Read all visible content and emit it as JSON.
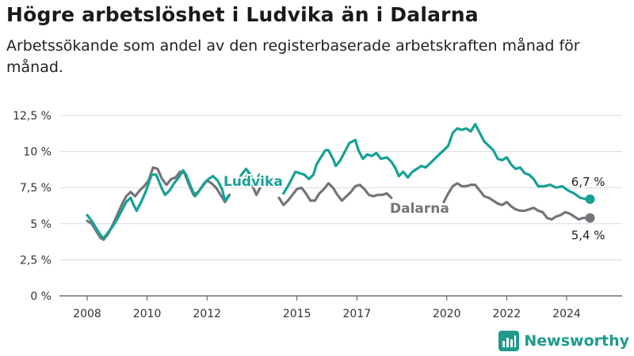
{
  "title": "Högre arbetslöshet i Ludvika än i Dalarna",
  "subtitle": "Arbetssökande som andel av den registerbaserade arbetskraften månad för månad.",
  "brand": {
    "name": "Newsworthy",
    "icon": "newsworthy-logo-icon"
  },
  "colors": {
    "ludvika": "#17a195",
    "dalarna": "#76747a",
    "grid": "#d9d9d9",
    "axis": "#555555"
  },
  "chart_data": {
    "type": "line",
    "title": "Högre arbetslöshet i Ludvika än i Dalarna",
    "subtitle": "Arbetssökande som andel av den registerbaserade arbetskraften månad för månad.",
    "xlabel": "",
    "ylabel": "",
    "xlim": [
      2007.5,
      2026.2
    ],
    "ylim": [
      0,
      12.5
    ],
    "grid": true,
    "legend": "inline labels",
    "y_ticks": [
      {
        "value": 0,
        "label": "0 %"
      },
      {
        "value": 2.5,
        "label": "2,5 %"
      },
      {
        "value": 5,
        "label": "5 %"
      },
      {
        "value": 7.5,
        "label": "7,5 %"
      },
      {
        "value": 10,
        "label": "10 %"
      },
      {
        "value": 12.5,
        "label": "12,5 %"
      }
    ],
    "x_ticks": [
      {
        "value": 2008,
        "label": "2008"
      },
      {
        "value": 2010,
        "label": "2010"
      },
      {
        "value": 2012,
        "label": "2012"
      },
      {
        "value": 2015,
        "label": "2015"
      },
      {
        "value": 2017,
        "label": "2017"
      },
      {
        "value": 2020,
        "label": "2020"
      },
      {
        "value": 2022,
        "label": "2022"
      },
      {
        "value": 2024,
        "label": "2024"
      }
    ],
    "series": [
      {
        "name": "Ludvika",
        "end_label": "6,7 %",
        "segments": [
          [
            [
              2008.0,
              5.6
            ],
            [
              2008.15,
              5.2
            ],
            [
              2008.3,
              4.7
            ],
            [
              2008.45,
              4.2
            ],
            [
              2008.55,
              4.0
            ],
            [
              2008.7,
              4.4
            ],
            [
              2008.85,
              4.8
            ],
            [
              2009.0,
              5.3
            ],
            [
              2009.15,
              5.9
            ],
            [
              2009.3,
              6.5
            ],
            [
              2009.45,
              6.8
            ],
            [
              2009.55,
              6.3
            ],
            [
              2009.65,
              5.9
            ],
            [
              2009.8,
              6.5
            ],
            [
              2009.95,
              7.2
            ],
            [
              2010.05,
              7.8
            ],
            [
              2010.15,
              8.4
            ],
            [
              2010.3,
              8.4
            ],
            [
              2010.4,
              7.9
            ],
            [
              2010.5,
              7.4
            ],
            [
              2010.6,
              7.0
            ],
            [
              2010.75,
              7.3
            ],
            [
              2010.9,
              7.8
            ],
            [
              2011.05,
              8.2
            ],
            [
              2011.2,
              8.7
            ],
            [
              2011.3,
              8.4
            ],
            [
              2011.45,
              7.6
            ],
            [
              2011.6,
              6.9
            ],
            [
              2011.75,
              7.3
            ],
            [
              2011.9,
              7.8
            ],
            [
              2012.05,
              8.1
            ],
            [
              2012.2,
              8.3
            ],
            [
              2012.35,
              8.0
            ],
            [
              2012.5,
              7.4
            ],
            [
              2012.6,
              6.6
            ],
            [
              2012.7,
              6.9
            ]
          ],
          [
            [
              2013.0,
              7.8
            ],
            [
              2013.15,
              8.4
            ],
            [
              2013.3,
              8.8
            ],
            [
              2013.45,
              8.4
            ],
            [
              2013.6,
              7.9
            ],
            [
              2013.75,
              8.4
            ],
            [
              2013.9,
              8.0
            ],
            [
              2014.0,
              7.7
            ]
          ],
          [
            [
              2014.55,
              7.1
            ],
            [
              2014.7,
              7.6
            ],
            [
              2014.85,
              8.2
            ],
            [
              2014.95,
              8.6
            ],
            [
              2015.1,
              8.5
            ],
            [
              2015.25,
              8.4
            ],
            [
              2015.4,
              8.1
            ],
            [
              2015.55,
              8.4
            ],
            [
              2015.65,
              9.1
            ],
            [
              2015.8,
              9.6
            ],
            [
              2015.95,
              10.1
            ],
            [
              2016.05,
              10.1
            ],
            [
              2016.2,
              9.5
            ],
            [
              2016.3,
              9.0
            ],
            [
              2016.45,
              9.4
            ],
            [
              2016.6,
              10.0
            ],
            [
              2016.75,
              10.6
            ],
            [
              2016.95,
              10.8
            ],
            [
              2017.05,
              10.1
            ],
            [
              2017.2,
              9.5
            ],
            [
              2017.35,
              9.8
            ],
            [
              2017.5,
              9.7
            ],
            [
              2017.65,
              9.9
            ],
            [
              2017.8,
              9.5
            ],
            [
              2018.0,
              9.6
            ],
            [
              2018.15,
              9.3
            ],
            [
              2018.3,
              8.8
            ],
            [
              2018.4,
              8.3
            ],
            [
              2018.55,
              8.6
            ],
            [
              2018.7,
              8.2
            ],
            [
              2018.85,
              8.6
            ],
            [
              2019.0,
              8.8
            ],
            [
              2019.15,
              9.0
            ],
            [
              2019.3,
              8.9
            ],
            [
              2019.45,
              9.2
            ],
            [
              2019.6,
              9.5
            ],
            [
              2019.75,
              9.8
            ],
            [
              2019.9,
              10.1
            ],
            [
              2020.05,
              10.4
            ],
            [
              2020.2,
              11.3
            ],
            [
              2020.35,
              11.6
            ],
            [
              2020.5,
              11.5
            ],
            [
              2020.65,
              11.6
            ],
            [
              2020.8,
              11.4
            ],
            [
              2020.95,
              11.9
            ],
            [
              2021.1,
              11.3
            ],
            [
              2021.25,
              10.7
            ],
            [
              2021.4,
              10.4
            ],
            [
              2021.55,
              10.1
            ],
            [
              2021.7,
              9.5
            ],
            [
              2021.85,
              9.4
            ],
            [
              2022.0,
              9.6
            ],
            [
              2022.15,
              9.1
            ],
            [
              2022.3,
              8.8
            ],
            [
              2022.45,
              8.9
            ],
            [
              2022.6,
              8.5
            ],
            [
              2022.75,
              8.4
            ],
            [
              2022.9,
              8.1
            ],
            [
              2023.05,
              7.6
            ],
            [
              2023.25,
              7.6
            ],
            [
              2023.45,
              7.7
            ],
            [
              2023.65,
              7.5
            ],
            [
              2023.85,
              7.6
            ],
            [
              2024.05,
              7.3
            ],
            [
              2024.25,
              7.1
            ],
            [
              2024.45,
              6.8
            ],
            [
              2024.65,
              6.7
            ]
          ]
        ]
      },
      {
        "name": "Dalarna",
        "end_label": "5,4 %",
        "segments": [
          [
            [
              2008.0,
              5.2
            ],
            [
              2008.15,
              5.0
            ],
            [
              2008.3,
              4.5
            ],
            [
              2008.45,
              4.0
            ],
            [
              2008.55,
              3.9
            ],
            [
              2008.7,
              4.3
            ],
            [
              2008.85,
              4.9
            ],
            [
              2009.0,
              5.6
            ],
            [
              2009.15,
              6.3
            ],
            [
              2009.3,
              6.9
            ],
            [
              2009.45,
              7.2
            ],
            [
              2009.6,
              6.9
            ],
            [
              2009.75,
              7.3
            ],
            [
              2009.9,
              7.6
            ],
            [
              2010.05,
              8.0
            ],
            [
              2010.2,
              8.9
            ],
            [
              2010.35,
              8.8
            ],
            [
              2010.5,
              8.1
            ],
            [
              2010.65,
              7.7
            ],
            [
              2010.8,
              8.1
            ],
            [
              2010.95,
              8.2
            ],
            [
              2011.1,
              8.6
            ],
            [
              2011.25,
              8.5
            ],
            [
              2011.4,
              7.7
            ],
            [
              2011.55,
              7.0
            ],
            [
              2011.7,
              7.2
            ],
            [
              2011.85,
              7.6
            ],
            [
              2012.0,
              8.0
            ],
            [
              2012.15,
              7.8
            ],
            [
              2012.3,
              7.5
            ],
            [
              2012.45,
              7.0
            ],
            [
              2012.6,
              6.5
            ],
            [
              2012.75,
              7.0
            ]
          ],
          [
            [
              2013.2,
              8.0
            ],
            [
              2013.35,
              8.4
            ],
            [
              2013.5,
              7.7
            ],
            [
              2013.65,
              7.0
            ],
            [
              2013.8,
              7.6
            ],
            [
              2013.95,
              7.9
            ]
          ],
          [
            [
              2014.4,
              6.8
            ],
            [
              2014.55,
              6.3
            ],
            [
              2014.7,
              6.6
            ],
            [
              2014.85,
              7.0
            ],
            [
              2015.0,
              7.4
            ],
            [
              2015.15,
              7.5
            ],
            [
              2015.3,
              7.1
            ],
            [
              2015.45,
              6.6
            ],
            [
              2015.6,
              6.6
            ],
            [
              2015.75,
              7.1
            ],
            [
              2015.9,
              7.4
            ],
            [
              2016.05,
              7.8
            ],
            [
              2016.2,
              7.5
            ],
            [
              2016.35,
              7.0
            ],
            [
              2016.5,
              6.6
            ],
            [
              2016.65,
              6.9
            ],
            [
              2016.8,
              7.2
            ],
            [
              2016.95,
              7.6
            ],
            [
              2017.1,
              7.7
            ],
            [
              2017.25,
              7.4
            ],
            [
              2017.4,
              7.0
            ],
            [
              2017.55,
              6.9
            ],
            [
              2017.7,
              7.0
            ],
            [
              2017.85,
              7.0
            ],
            [
              2018.0,
              7.1
            ],
            [
              2018.15,
              6.8
            ]
          ],
          [
            [
              2019.9,
              6.5
            ],
            [
              2020.05,
              7.1
            ],
            [
              2020.2,
              7.6
            ],
            [
              2020.35,
              7.8
            ],
            [
              2020.5,
              7.6
            ],
            [
              2020.65,
              7.6
            ],
            [
              2020.8,
              7.7
            ],
            [
              2020.95,
              7.7
            ],
            [
              2021.1,
              7.3
            ],
            [
              2021.25,
              6.9
            ],
            [
              2021.4,
              6.8
            ],
            [
              2021.55,
              6.6
            ],
            [
              2021.7,
              6.4
            ],
            [
              2021.85,
              6.3
            ],
            [
              2022.0,
              6.5
            ],
            [
              2022.15,
              6.2
            ],
            [
              2022.3,
              6.0
            ],
            [
              2022.45,
              5.9
            ],
            [
              2022.6,
              5.9
            ],
            [
              2022.75,
              6.0
            ],
            [
              2022.9,
              6.1
            ],
            [
              2023.05,
              5.9
            ],
            [
              2023.2,
              5.8
            ],
            [
              2023.35,
              5.4
            ],
            [
              2023.5,
              5.3
            ],
            [
              2023.65,
              5.5
            ],
            [
              2023.8,
              5.6
            ],
            [
              2023.95,
              5.8
            ],
            [
              2024.1,
              5.7
            ],
            [
              2024.25,
              5.5
            ],
            [
              2024.4,
              5.3
            ],
            [
              2024.55,
              5.4
            ],
            [
              2024.65,
              5.4
            ]
          ]
        ]
      }
    ]
  }
}
